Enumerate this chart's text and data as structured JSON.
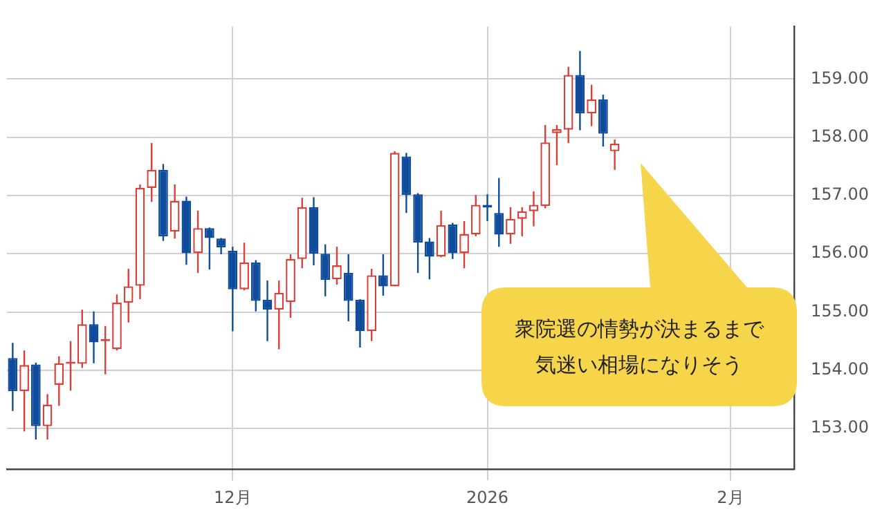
{
  "chart_data": {
    "type": "candlestick",
    "categories": [
      null,
      null,
      null,
      null,
      null,
      null,
      null,
      null,
      null,
      null,
      null,
      null,
      null,
      null,
      null,
      null,
      null,
      null,
      null,
      "12月",
      null,
      null,
      null,
      null,
      null,
      null,
      null,
      null,
      null,
      null,
      null,
      null,
      null,
      null,
      null,
      null,
      null,
      null,
      null,
      null,
      null,
      "2026",
      null,
      null,
      null,
      null,
      null,
      null,
      null,
      null,
      null,
      null,
      null,
      null,
      null,
      null,
      null,
      null,
      null,
      null,
      null,
      null,
      "2月",
      null,
      null,
      null,
      null,
      null
    ],
    "ohlc": [
      [
        154.21,
        154.47,
        153.3,
        153.64
      ],
      [
        153.64,
        154.34,
        152.95,
        154.09
      ],
      [
        154.1,
        154.13,
        152.81,
        153.04
      ],
      [
        153.04,
        153.59,
        152.81,
        153.41
      ],
      [
        153.75,
        154.24,
        153.39,
        154.12
      ],
      [
        154.11,
        154.5,
        153.65,
        154.13
      ],
      [
        154.11,
        155.04,
        154.04,
        154.79
      ],
      [
        154.79,
        155.01,
        154.12,
        154.48
      ],
      [
        154.5,
        154.76,
        153.93,
        154.52
      ],
      [
        154.36,
        155.3,
        154.34,
        155.16
      ],
      [
        155.16,
        155.74,
        154.82,
        155.44
      ],
      [
        155.45,
        157.19,
        155.22,
        157.13
      ],
      [
        157.13,
        157.9,
        156.89,
        157.44
      ],
      [
        157.44,
        157.54,
        156.22,
        156.3
      ],
      [
        156.38,
        157.19,
        156.26,
        156.91
      ],
      [
        156.91,
        156.98,
        155.81,
        156.01
      ],
      [
        156.01,
        156.74,
        155.67,
        156.44
      ],
      [
        156.44,
        156.45,
        155.73,
        156.27
      ],
      [
        156.26,
        156.27,
        155.99,
        156.11
      ],
      [
        156.05,
        156.12,
        154.67,
        155.39
      ],
      [
        155.39,
        156.19,
        155.37,
        155.85
      ],
      [
        155.85,
        155.89,
        155.01,
        155.19
      ],
      [
        155.21,
        155.54,
        154.5,
        155.04
      ],
      [
        155.04,
        155.54,
        154.36,
        155.33
      ],
      [
        155.17,
        155.99,
        154.9,
        155.91
      ],
      [
        155.91,
        156.96,
        155.75,
        156.8
      ],
      [
        156.8,
        156.97,
        155.8,
        156.0
      ],
      [
        156.0,
        156.16,
        155.27,
        155.55
      ],
      [
        155.56,
        156.12,
        155.47,
        155.8
      ],
      [
        155.67,
        155.99,
        154.84,
        155.19
      ],
      [
        155.21,
        155.22,
        154.39,
        154.67
      ],
      [
        154.67,
        155.74,
        154.5,
        155.63
      ],
      [
        155.63,
        155.99,
        155.28,
        155.44
      ],
      [
        155.44,
        157.76,
        155.44,
        157.73
      ],
      [
        157.67,
        157.73,
        156.7,
        157.01
      ],
      [
        157.02,
        157.04,
        155.67,
        156.19
      ],
      [
        156.21,
        156.27,
        155.56,
        155.95
      ],
      [
        155.95,
        156.74,
        155.94,
        156.49
      ],
      [
        156.5,
        156.53,
        155.91,
        156.01
      ],
      [
        156.01,
        156.56,
        155.75,
        156.34
      ],
      [
        156.33,
        157.01,
        156.3,
        156.84
      ],
      [
        156.84,
        157.02,
        156.56,
        156.79
      ],
      [
        156.7,
        157.3,
        156.12,
        156.33
      ],
      [
        156.33,
        156.8,
        156.17,
        156.6
      ],
      [
        156.6,
        156.8,
        156.3,
        156.73
      ],
      [
        156.73,
        157.07,
        156.47,
        156.84
      ],
      [
        156.82,
        158.21,
        156.78,
        157.91
      ],
      [
        158.07,
        158.21,
        157.52,
        158.14
      ],
      [
        158.13,
        159.21,
        157.9,
        159.07
      ],
      [
        159.07,
        159.48,
        158.12,
        158.41
      ],
      [
        158.41,
        158.9,
        158.19,
        158.65
      ],
      [
        158.65,
        158.73,
        157.84,
        158.06
      ],
      [
        157.76,
        157.96,
        157.44,
        157.89
      ],
      null,
      null,
      null,
      null,
      null,
      null,
      null,
      null,
      null,
      null,
      null,
      null,
      null,
      null,
      null
    ],
    "colors": [
      "#0f4c9c",
      "#d9403a",
      "#0f4c9c",
      "#d9403a",
      "#d9403a",
      "#d9403a",
      "#d9403a",
      "#0f4c9c",
      "#d9403a",
      "#d9403a",
      "#d9403a",
      "#d9403a",
      "#d9403a",
      "#0f4c9c",
      "#d9403a",
      "#0f4c9c",
      "#d9403a",
      "#0f4c9c",
      "#0f4c9c",
      "#0f4c9c",
      "#d9403a",
      "#0f4c9c",
      "#0f4c9c",
      "#d9403a",
      "#d9403a",
      "#d9403a",
      "#0f4c9c",
      "#0f4c9c",
      "#d9403a",
      "#0f4c9c",
      "#0f4c9c",
      "#d9403a",
      "#0f4c9c",
      "#d9403a",
      "#0f4c9c",
      "#0f4c9c",
      "#0f4c9c",
      "#d9403a",
      "#0f4c9c",
      "#d9403a",
      "#d9403a",
      "#0f4c9c",
      "#0f4c9c",
      "#d9403a",
      "#d9403a",
      "#d9403a",
      "#d9403a",
      "#d9403a",
      "#d9403a",
      "#0f4c9c",
      "#d9403a",
      "#0f4c9c",
      "#d9403a",
      null,
      null,
      null,
      null,
      null,
      null,
      null,
      null,
      null,
      null,
      null,
      null,
      null,
      null,
      null
    ],
    "ylim": [
      152.3,
      159.9
    ],
    "yticks": [
      {
        "value": 153,
        "label": "153.00"
      },
      {
        "value": 154,
        "label": "154.00"
      },
      {
        "value": 155,
        "label": "155.00"
      },
      {
        "value": 156,
        "label": "156.00"
      },
      {
        "value": 157,
        "label": "157.00"
      },
      {
        "value": 158,
        "label": "158.00"
      },
      {
        "value": 159,
        "label": "159.00"
      }
    ],
    "grid": true,
    "annotations": [
      "衆院選の情勢が決まるまで気迷い相場になりそう"
    ]
  }
}
